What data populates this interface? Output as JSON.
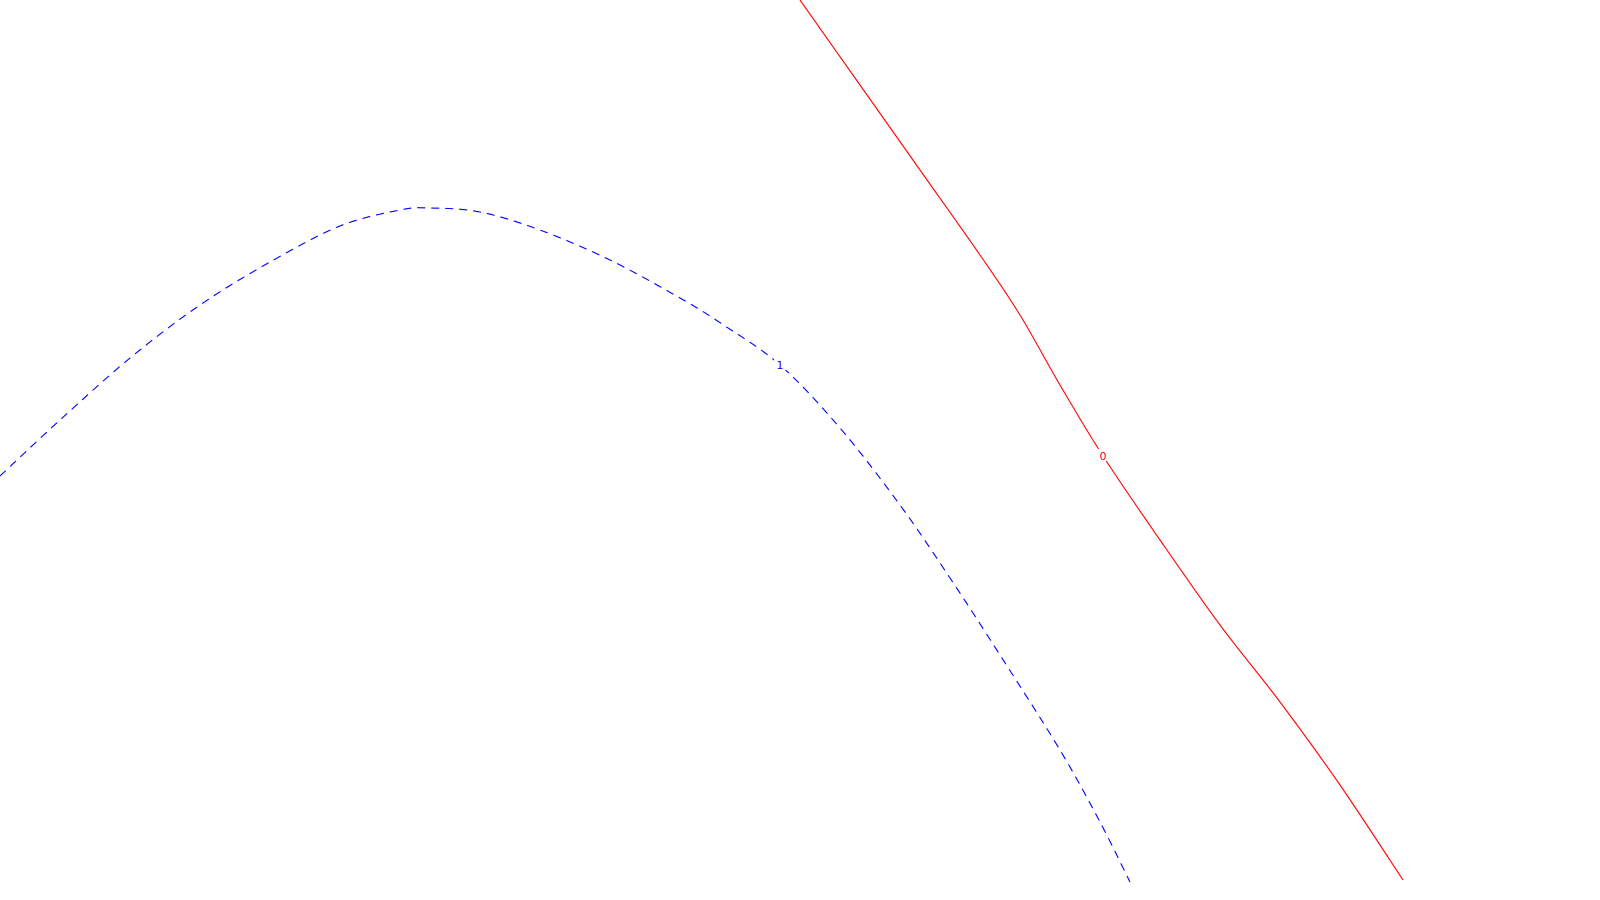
{
  "chart_data": {
    "type": "line",
    "title": "",
    "xlabel": "",
    "ylabel": "",
    "grid": false,
    "legend": "none",
    "series": [
      {
        "label": "0",
        "color": "#ff0000",
        "style": "solid",
        "points": [
          [
            800,
            0
          ],
          [
            860,
            85
          ],
          [
            920,
            170
          ],
          [
            980,
            255
          ],
          [
            1020,
            315
          ],
          [
            1060,
            385
          ],
          [
            1103,
            456
          ],
          [
            1160,
            540
          ],
          [
            1220,
            625
          ],
          [
            1280,
            702
          ],
          [
            1340,
            785
          ],
          [
            1403,
            880
          ]
        ]
      },
      {
        "label": "1",
        "color": "#0000ff",
        "style": "dashed",
        "points": [
          [
            0,
            476
          ],
          [
            60,
            420
          ],
          [
            130,
            358
          ],
          [
            200,
            305
          ],
          [
            270,
            262
          ],
          [
            340,
            226
          ],
          [
            400,
            210
          ],
          [
            430,
            208
          ],
          [
            480,
            212
          ],
          [
            540,
            230
          ],
          [
            610,
            260
          ],
          [
            680,
            298
          ],
          [
            722,
            324
          ],
          [
            780,
            365
          ],
          [
            840,
            428
          ],
          [
            900,
            505
          ],
          [
            950,
            578
          ],
          [
            1000,
            655
          ],
          [
            1060,
            750
          ],
          [
            1100,
            822
          ],
          [
            1130,
            882
          ]
        ]
      }
    ]
  }
}
